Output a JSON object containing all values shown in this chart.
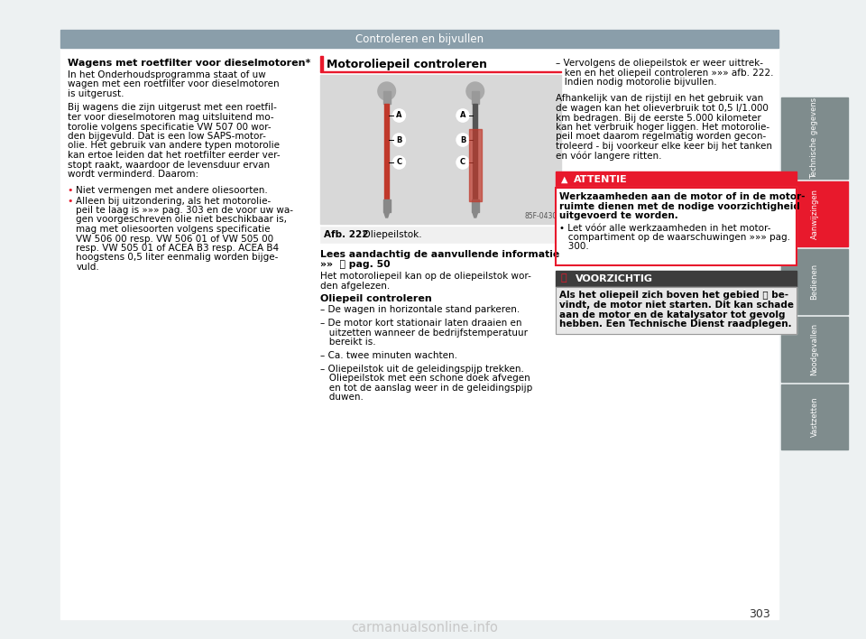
{
  "page_bg": "#edf1f2",
  "content_bg": "#ffffff",
  "header_bar_color": "#8a9eaa",
  "header_text": "Controleren en bijvullen",
  "header_text_color": "#ffffff",
  "sidebar_tabs": [
    {
      "label": "Technische gegevens",
      "color": "#7f8c8d",
      "active": false
    },
    {
      "label": "Aanwijzingen",
      "color": "#e8192c",
      "active": true
    },
    {
      "label": "Bedienen",
      "color": "#7f8c8d",
      "active": false
    },
    {
      "label": "Noodgevallen",
      "color": "#7f8c8d",
      "active": false
    },
    {
      "label": "Vastzetten",
      "color": "#7f8c8d",
      "active": false
    }
  ],
  "page_number": "303",
  "left_section_title": "Wagens met roetfilter voor dieselmotoren*",
  "left_para1": "In het Onderhoudsprogramma staat of uw\nwagen met een roetfilter voor dieselmotoren\nis uitgerust.",
  "left_para2": "Bij wagens die zijn uitgerust met een roetfil-\nter voor dieselmotoren mag uitsluitend mo-\ntorolie volgens specificatie VW 507 00 wor-\nden bijgevuld. Dat is een low SAPS-motor-\nolie. Het gebruik van andere typen motorolie\nkan ertoe leiden dat het roetfilter eerder ver-\nstopt raakt, waardoor de levensduur ervan\nwordt verminderd. Daarom:",
  "left_bullet1": "Niet vermengen met andere oliesoorten.",
  "left_bullet2": "Alleen bij uitzondering, als het motorolie-\npeil te laag is »»» pag. 303 en de voor uw wa-\ngen voorgeschreven olie niet beschikbaar is,\nmag met oliesoorten volgens specificatie\nVW 506 00 resp. VW 506 01 of VW 505 00\nresp. VW 505 01 of ACEA B3 resp. ACEA B4\nhoogstens 0,5 liter eenmalig worden bijge-\nvuld.",
  "mid_section_title": "Motoroliepeil controleren",
  "mid_section_title_line_color": "#e8192c",
  "mid_image_caption_bold": "Afb. 222",
  "mid_image_caption_normal": "  Oliepeilstok.",
  "mid_lees_title": "Lees aandachtig de aanvullende informatie",
  "mid_lees_sub": "»»  📄 pag. 50",
  "mid_lees_body_line1": "Het motoroliepeil kan op de oliepeilstok wor-",
  "mid_lees_body_line2": "den afgelezen.",
  "mid_oliepeil_title": "Oliepeil controleren",
  "mid_oliepeil_lines": [
    "– De wagen in horizontale stand parkeren.",
    "",
    "– De motor kort stationair laten draaien en",
    "   uitzetten wanneer de bedrijfstemperatuur",
    "   bereikt is.",
    "",
    "– Ca. twee minuten wachten.",
    "",
    "– Oliepeilstok uit de geleidingspijp trekken.",
    "   Oliepeilstok met een schone doek afvegen",
    "   en tot de aanslag weer in de geleidingspijp",
    "   duwen."
  ],
  "right_para1_lines": [
    "– Vervolgens de oliepeilstok er weer uittrek-",
    "   ken en het oliepeil controleren »»» afb. 222.",
    "   Indien nodig motorolie bijvullen."
  ],
  "right_para2_lines": [
    "Afhankelijk van de rijstijl en het gebruik van",
    "de wagen kan het olieverbruik tot 0,5 l/1.000",
    "km bedragen. Bij de eerste 5.000 kilometer",
    "kan het verbruik hoger liggen. Het motorolie-",
    "peil moet daarom regelmatig worden gecon-",
    "troleerd - bij voorkeur elke keer bij het tanken",
    "en vóór langere ritten."
  ],
  "attentie_bg": "#e8192c",
  "attentie_title": "ATTENTIE",
  "attentie_body_bold": [
    "Werkzaamheden aan de motor of in de motor-",
    "ruimte dienen met de nodige voorzichtigheid",
    "uitgevoerd te worden."
  ],
  "attentie_body_bullet": [
    "• Let vóór alle werkzaamheden in het motor-",
    "   compartiment op de waarschuwingen »»» pag.",
    "   300."
  ],
  "attentie_border_color": "#e8192c",
  "voorzichtig_bg": "#3d3d3d",
  "voorzichtig_title": "VOORZICHTIG",
  "voorzichtig_icon_color": "#e8192c",
  "voorzichtig_body_bold": [
    "Als het oliepeil zich boven het gebied Ⓐ be-",
    "vindt, de motor niet starten. Dit kan schade",
    "aan de motor en de katalysator tot gevolg",
    "hebben. Een Technische Dienst raadplegen."
  ],
  "watermark_text": "carmanualsonline.info",
  "watermark_color": "#c8c8c8"
}
